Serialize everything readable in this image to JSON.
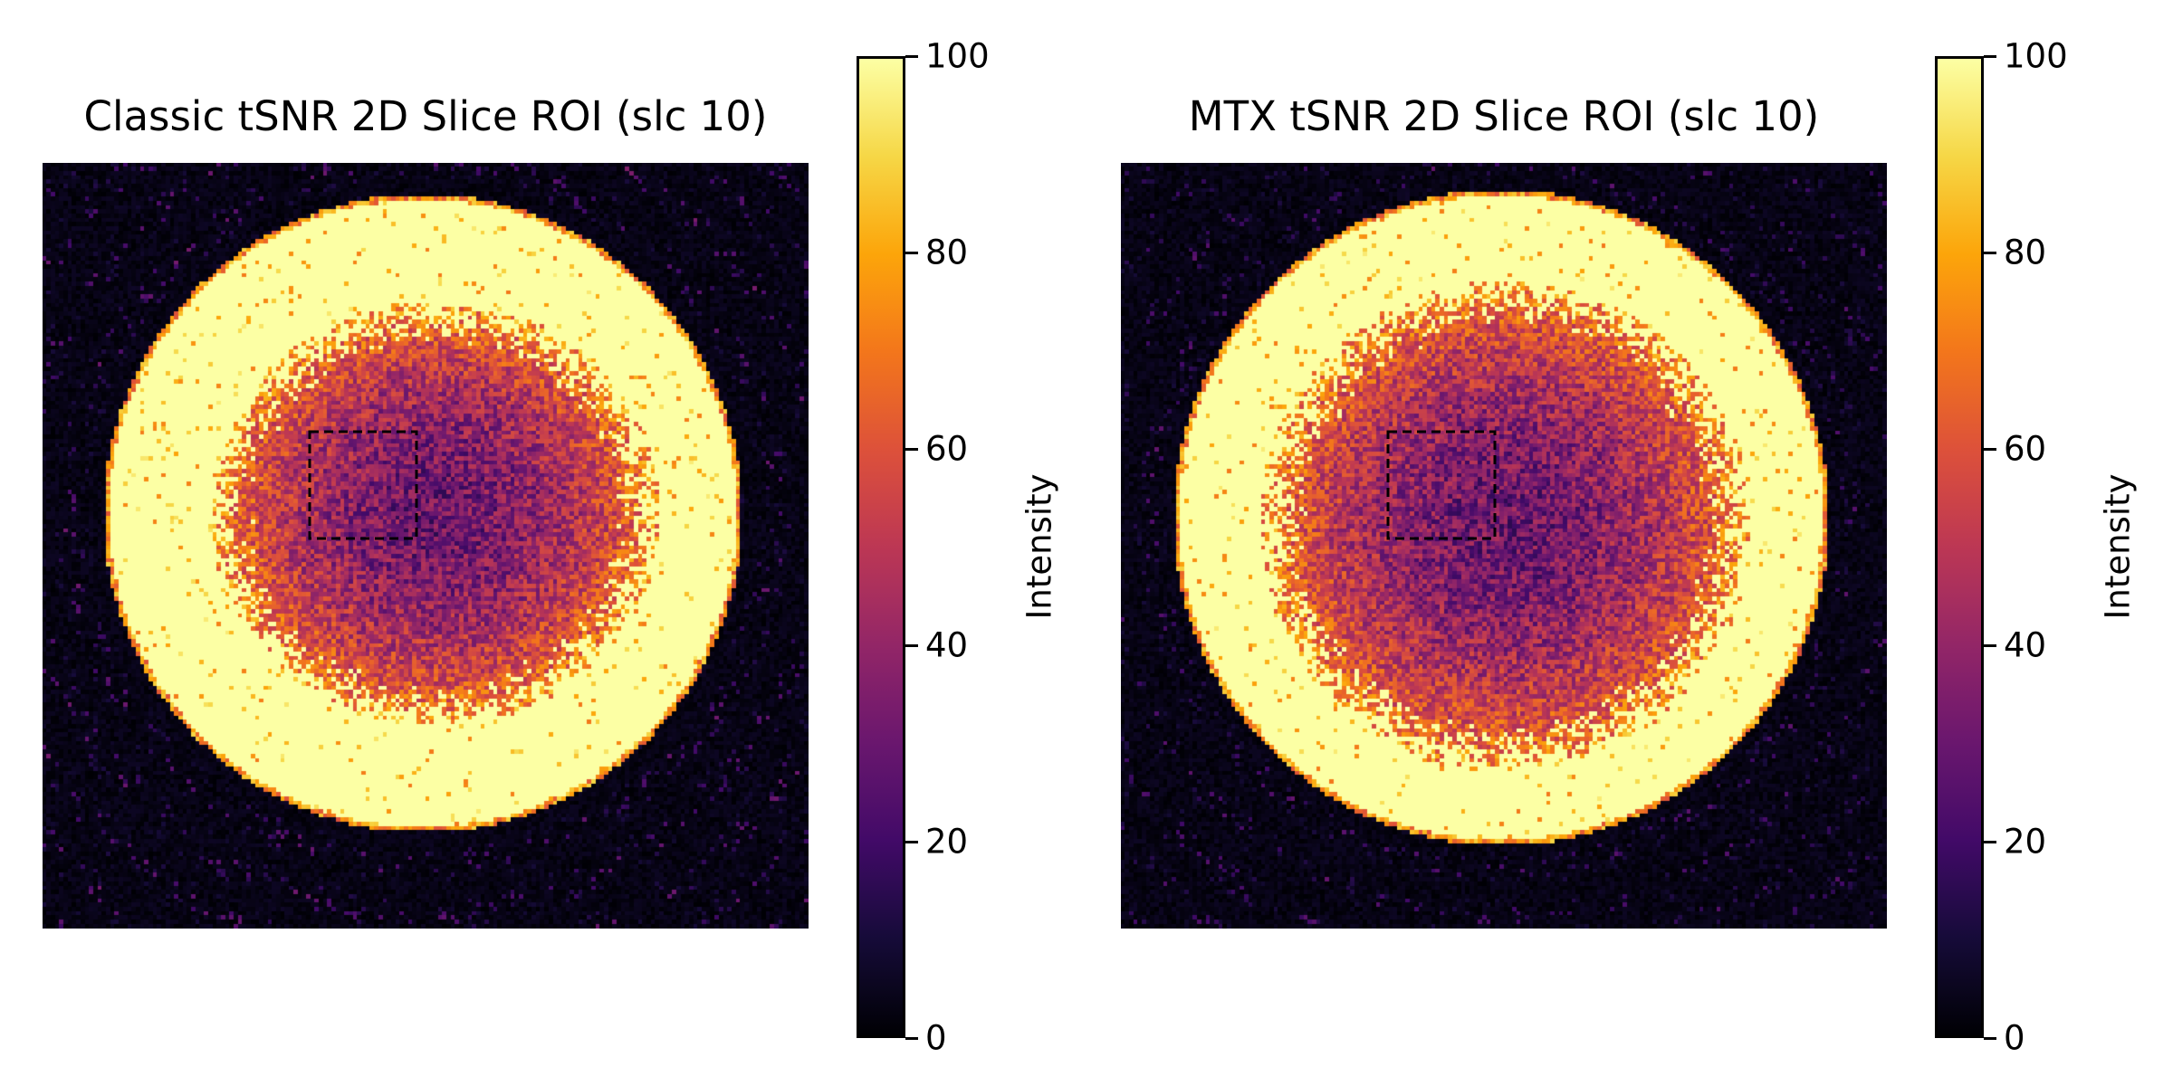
{
  "chart_data": [
    {
      "type": "heatmap",
      "title": "Classic tSNR 2D Slice ROI (slc 10)",
      "colormap": "inferno",
      "clim": [
        0,
        100
      ],
      "colorbar": {
        "label": "Intensity",
        "ticks": [
          0,
          20,
          40,
          60,
          80,
          100
        ]
      },
      "roi": {
        "style": "dashed-rectangle",
        "color": "#000000"
      }
    },
    {
      "type": "heatmap",
      "title": "MTX tSNR 2D Slice ROI (slc 10)",
      "colormap": "inferno",
      "clim": [
        0,
        100
      ],
      "colorbar": {
        "label": "Intensity",
        "ticks": [
          0,
          20,
          40,
          60,
          80,
          100
        ]
      },
      "roi": {
        "style": "dashed-rectangle",
        "color": "#000000"
      }
    }
  ]
}
